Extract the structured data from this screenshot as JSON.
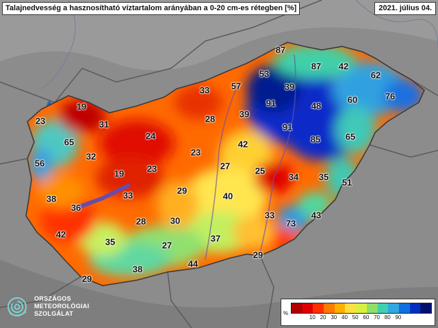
{
  "title": "Talajnedvesség a hasznosítható víztartalom arányában a 0-20 cm-es rétegben [%]",
  "date": "2021. július 04.",
  "logo": {
    "line1": "ORSZÁGOS",
    "line2": "METEOROLÓGIAI",
    "line3": "SZOLGÁLAT"
  },
  "legend": {
    "unit": "%",
    "colors": [
      "#b00000",
      "#e00000",
      "#ff3000",
      "#ff7a00",
      "#ffb000",
      "#ffe040",
      "#d8f040",
      "#8ee06a",
      "#40d0b0",
      "#30a8e0",
      "#1070e0",
      "#0030c0",
      "#001070"
    ],
    "ticks": [
      "10",
      "20",
      "30",
      "40",
      "50",
      "60",
      "70",
      "80",
      "90"
    ]
  },
  "values": [
    "87",
    "53",
    "87",
    "42",
    "57",
    "39",
    "62",
    "33",
    "91",
    "48",
    "60",
    "76",
    "19",
    "28",
    "39",
    "91",
    "85",
    "23",
    "31",
    "24",
    "23",
    "65",
    "42",
    "65",
    "32",
    "27",
    "25",
    "34",
    "35",
    "56",
    "19",
    "23",
    "51",
    "29",
    "38",
    "33",
    "40",
    "36",
    "33",
    "43",
    "28",
    "30",
    "73",
    "42",
    "35",
    "37",
    "27",
    "29",
    "44",
    "38",
    "29"
  ]
}
